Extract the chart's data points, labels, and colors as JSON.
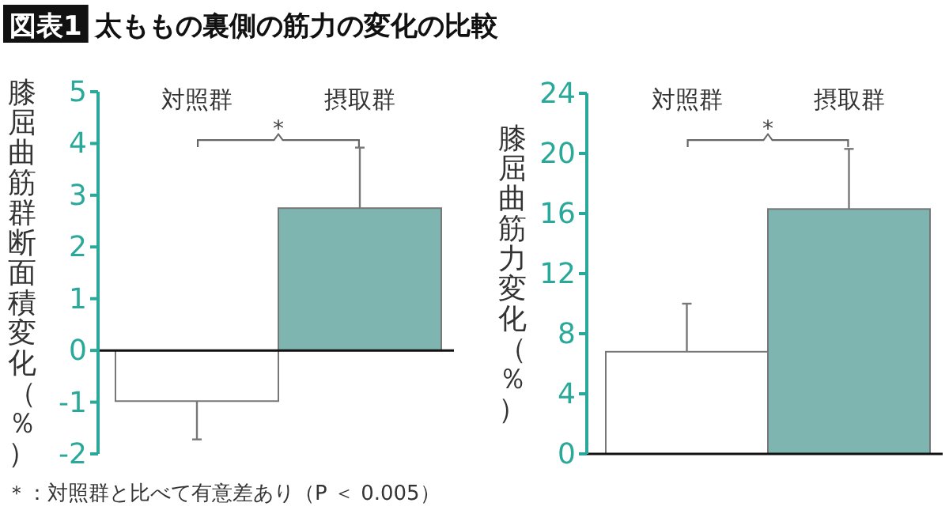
{
  "chart_data": [
    {
      "type": "bar",
      "subtitle": "図表1",
      "title": "太ももの裏側の筋力の変化の比較",
      "ylabel": "膝屈曲筋群断面積変化（％）",
      "categories": [
        "対照群",
        "摂取群"
      ],
      "values": [
        -0.98,
        2.75
      ],
      "colors": [
        "#ffffff",
        "#7fb5b0"
      ],
      "errors": [
        [
          -1.72,
          -0.98
        ],
        [
          2.75,
          3.92
        ]
      ],
      "ylim": [
        -2,
        5
      ],
      "yticks": [
        -2,
        -1,
        0,
        1,
        2,
        3,
        4,
        5
      ],
      "annotations": [
        "*",
        "＊：対照群と比べて有意差あり（P ＜ 0.005）"
      ]
    },
    {
      "type": "bar",
      "ylabel": "膝屈曲筋力変化（％）",
      "categories": [
        "対照群",
        "摂取群"
      ],
      "values": [
        6.8,
        16.3
      ],
      "colors": [
        "#ffffff",
        "#7fb5b0"
      ],
      "errors": [
        [
          6.8,
          10.0
        ],
        [
          16.3,
          20.3
        ]
      ],
      "ylim": [
        0,
        24
      ],
      "yticks": [
        0,
        4,
        8,
        12,
        16,
        20,
        24
      ],
      "annotations": [
        "*"
      ]
    }
  ]
}
